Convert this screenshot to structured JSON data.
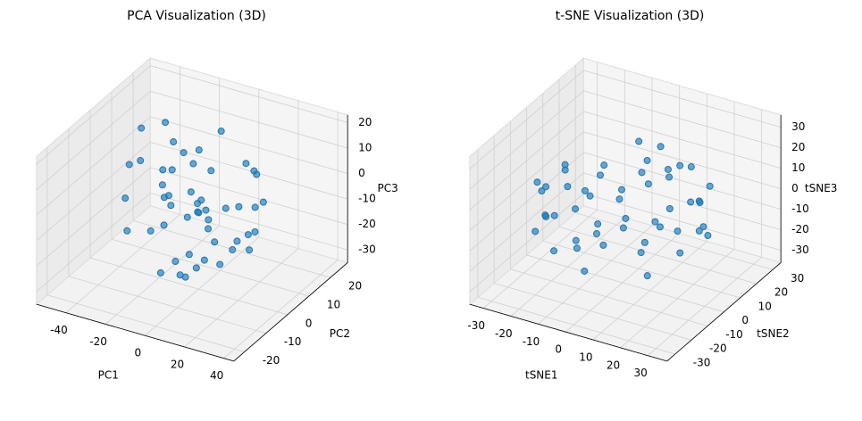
{
  "chart_data": [
    {
      "type": "scatter3d",
      "title": "PCA Visualization (3D)",
      "xlabel": "PC1",
      "ylabel": "PC2",
      "zlabel": "PC3",
      "color": "#1f77b4",
      "xlim": [
        -55,
        45
      ],
      "ylim": [
        -25,
        28
      ],
      "zlim": [
        -35,
        23
      ],
      "xticks": [
        -40,
        -20,
        0,
        20,
        40
      ],
      "yticks": [
        -20,
        -10,
        0,
        10,
        20
      ],
      "zticks": [
        -30,
        -20,
        -10,
        0,
        10,
        20
      ],
      "x": [
        -12,
        5,
        18,
        -25,
        3,
        -8,
        22,
        10,
        -30,
        0,
        14,
        -18,
        7,
        -4,
        26,
        -15,
        9,
        -22,
        16,
        -2,
        -35,
        1,
        12,
        -10,
        30,
        -6,
        20,
        -28,
        4,
        -14,
        8,
        -20,
        24,
        -1,
        11,
        -45,
        -40,
        6,
        -16,
        15,
        -9,
        19,
        -26,
        2,
        13,
        -33,
        -5,
        28,
        -12,
        17
      ],
      "y": [
        -5,
        8,
        -12,
        10,
        3,
        -15,
        6,
        -8,
        12,
        0,
        -3,
        14,
        -10,
        7,
        -6,
        2,
        18,
        -14,
        4,
        -9,
        5,
        -2,
        11,
        -7,
        -4,
        16,
        -11,
        9,
        -1,
        13,
        -16,
        6,
        1,
        -13,
        20,
        8,
        10,
        -6,
        -3,
        12,
        3,
        -18,
        7,
        -8,
        15,
        -2,
        9,
        -10,
        4,
        -20
      ],
      "z": [
        2,
        -8,
        5,
        -15,
        10,
        -3,
        -12,
        8,
        15,
        -5,
        -20,
        0,
        12,
        -10,
        -6,
        18,
        -14,
        6,
        -2,
        -18,
        4,
        -25,
        9,
        -7,
        -10,
        14,
        -4,
        -1,
        -22,
        7,
        -16,
        3,
        -9,
        11,
        -13,
        -28,
        12,
        1,
        -30,
        6,
        -11,
        16,
        -5,
        -24,
        2,
        8,
        -19,
        -6,
        13,
        -3
      ]
    },
    {
      "type": "scatter3d",
      "title": "t-SNE Visualization (3D)",
      "xlabel": "tSNE1",
      "ylabel": "tSNE2",
      "zlabel": "tSNE3",
      "color": "#1f77b4",
      "xlim": [
        -35,
        37
      ],
      "ylim": [
        -35,
        35
      ],
      "zlim": [
        -36,
        36
      ],
      "xticks": [
        -30,
        -20,
        -10,
        0,
        10,
        20,
        30
      ],
      "yticks": [
        -30,
        -20,
        -10,
        0,
        10,
        20,
        30
      ],
      "zticks": [
        -30,
        -20,
        -10,
        0,
        10,
        20,
        30
      ],
      "x": [
        28,
        -28,
        0,
        0,
        20,
        -20,
        20,
        -20,
        15,
        -15,
        15,
        -15,
        25,
        -25,
        10,
        -10,
        5,
        -5,
        22,
        -22,
        0,
        0,
        12,
        -12,
        18,
        -18,
        8,
        -8,
        26,
        -26,
        14,
        -14,
        3,
        -3,
        24,
        -24,
        6,
        -6,
        17,
        -17,
        0,
        10,
        -10,
        20,
        -20,
        13,
        -13,
        2,
        -2,
        9
      ],
      "y": [
        0,
        0,
        28,
        -28,
        20,
        20,
        -20,
        -20,
        10,
        10,
        -10,
        -10,
        5,
        -5,
        25,
        -25,
        15,
        -15,
        -8,
        8,
        20,
        -20,
        22,
        -22,
        5,
        -5,
        -14,
        14,
        -10,
        10,
        24,
        -24,
        18,
        -18,
        12,
        -12,
        -26,
        26,
        0,
        0,
        10,
        -5,
        5,
        16,
        -16,
        -20,
        20,
        8,
        -8,
        0
      ],
      "z": [
        0,
        0,
        0,
        0,
        5,
        -5,
        5,
        -5,
        20,
        -20,
        -20,
        20,
        10,
        -10,
        -10,
        10,
        22,
        -22,
        14,
        -14,
        -20,
        20,
        10,
        -10,
        -18,
        18,
        22,
        -22,
        6,
        -6,
        -8,
        8,
        -20,
        20,
        -12,
        12,
        8,
        -8,
        22,
        -22,
        26,
        25,
        -25,
        -12,
        12,
        14,
        -14,
        -26,
        26,
        27
      ]
    }
  ]
}
